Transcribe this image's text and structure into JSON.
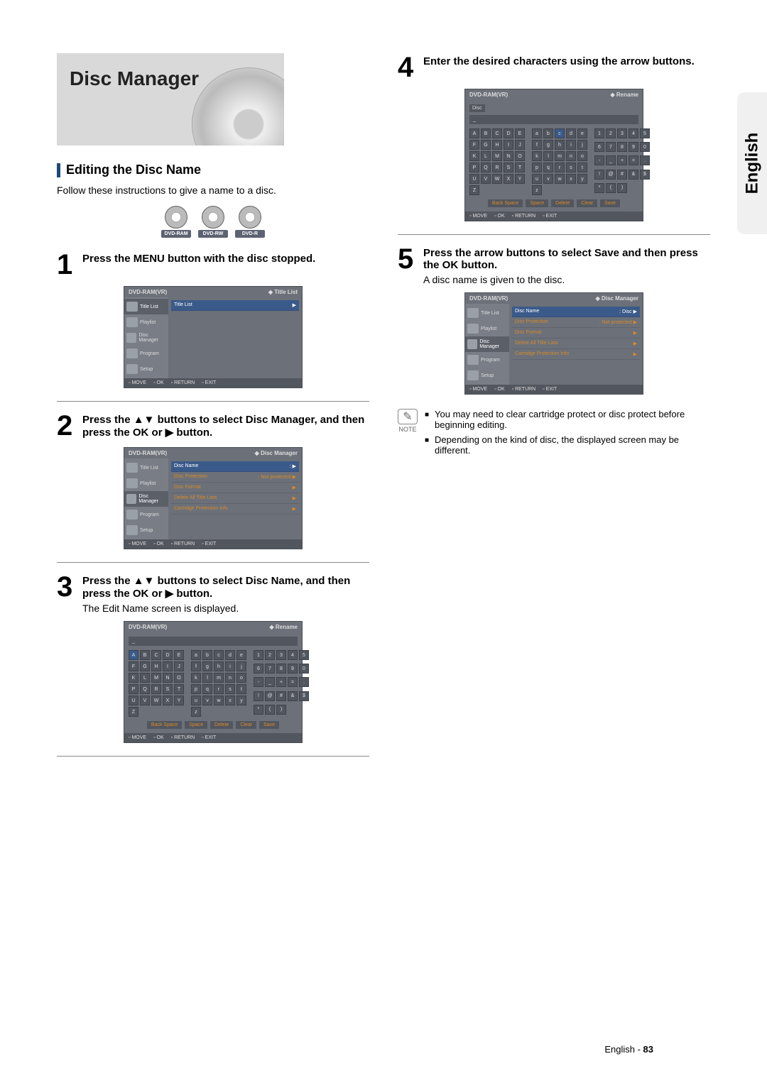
{
  "language_tab": "English",
  "hero_title": "Disc Manager",
  "section_title": "Editing the Disc Name",
  "intro": "Follow these instructions to give a name to a disc.",
  "media": [
    "DVD-RAM",
    "DVD-RW",
    "DVD-R"
  ],
  "steps": {
    "s1": "Press the MENU button with the disc stopped.",
    "s2": "Press the ▲▼ buttons to select Disc Manager, and then press the OK or ▶ button.",
    "s3": "Press the ▲▼ buttons to select Disc Name, and then press the OK or ▶ button.",
    "s3_sub": "The Edit Name screen is displayed.",
    "s4": "Enter the desired characters using the arrow buttons.",
    "s5": "Press the arrow buttons to select Save and then press the OK button.",
    "s5_sub": "A disc name is given to the disc."
  },
  "osd": {
    "format": "DVD-RAM(VR)",
    "title_list": "Title List",
    "disc_manager": "Disc Manager",
    "rename": "Rename",
    "side": [
      "Title List",
      "Playlist",
      "Disc Manager",
      "Program",
      "Setup"
    ],
    "rows": {
      "disc_name": "Disc Name",
      "disc_name_val": ": Disc",
      "disc_name_blank": ":",
      "protection": "Disc Protection",
      "protection_val": ": Not protected",
      "format_label": "Disc Format",
      "delete_all": "Delete All Title Lists",
      "cart": "Cartridge Protection Info"
    },
    "disc_label": "Disc",
    "foot": {
      "move": "MOVE",
      "ok": "OK",
      "return": "RETURN",
      "exit": "EXIT"
    },
    "kb_actions": [
      "Back Space",
      "Space",
      "Delete",
      "Clear",
      "Save"
    ],
    "upper": [
      "A",
      "B",
      "C",
      "D",
      "E",
      "F",
      "G",
      "H",
      "I",
      "J",
      "K",
      "L",
      "M",
      "N",
      "O",
      "P",
      "Q",
      "R",
      "S",
      "T",
      "U",
      "V",
      "W",
      "X",
      "Y",
      "Z"
    ],
    "lower": [
      "a",
      "b",
      "c",
      "d",
      "e",
      "f",
      "g",
      "h",
      "i",
      "j",
      "k",
      "l",
      "m",
      "n",
      "o",
      "p",
      "q",
      "r",
      "s",
      "t",
      "u",
      "v",
      "w",
      "x",
      "y",
      "z"
    ],
    "nums": [
      "1",
      "2",
      "3",
      "4",
      "5",
      "6",
      "7",
      "8",
      "9",
      "0",
      "-",
      "_",
      "+",
      "=",
      ".",
      "!",
      "@",
      "#",
      "&",
      "$",
      "*",
      "(",
      ")"
    ]
  },
  "notes": {
    "label": "NOTE",
    "items": [
      "You may need to clear cartridge protect or disc protect before beginning editing.",
      "Depending on the kind of disc, the displayed screen may be different."
    ]
  },
  "footer": {
    "lang": "English",
    "page": "83"
  }
}
